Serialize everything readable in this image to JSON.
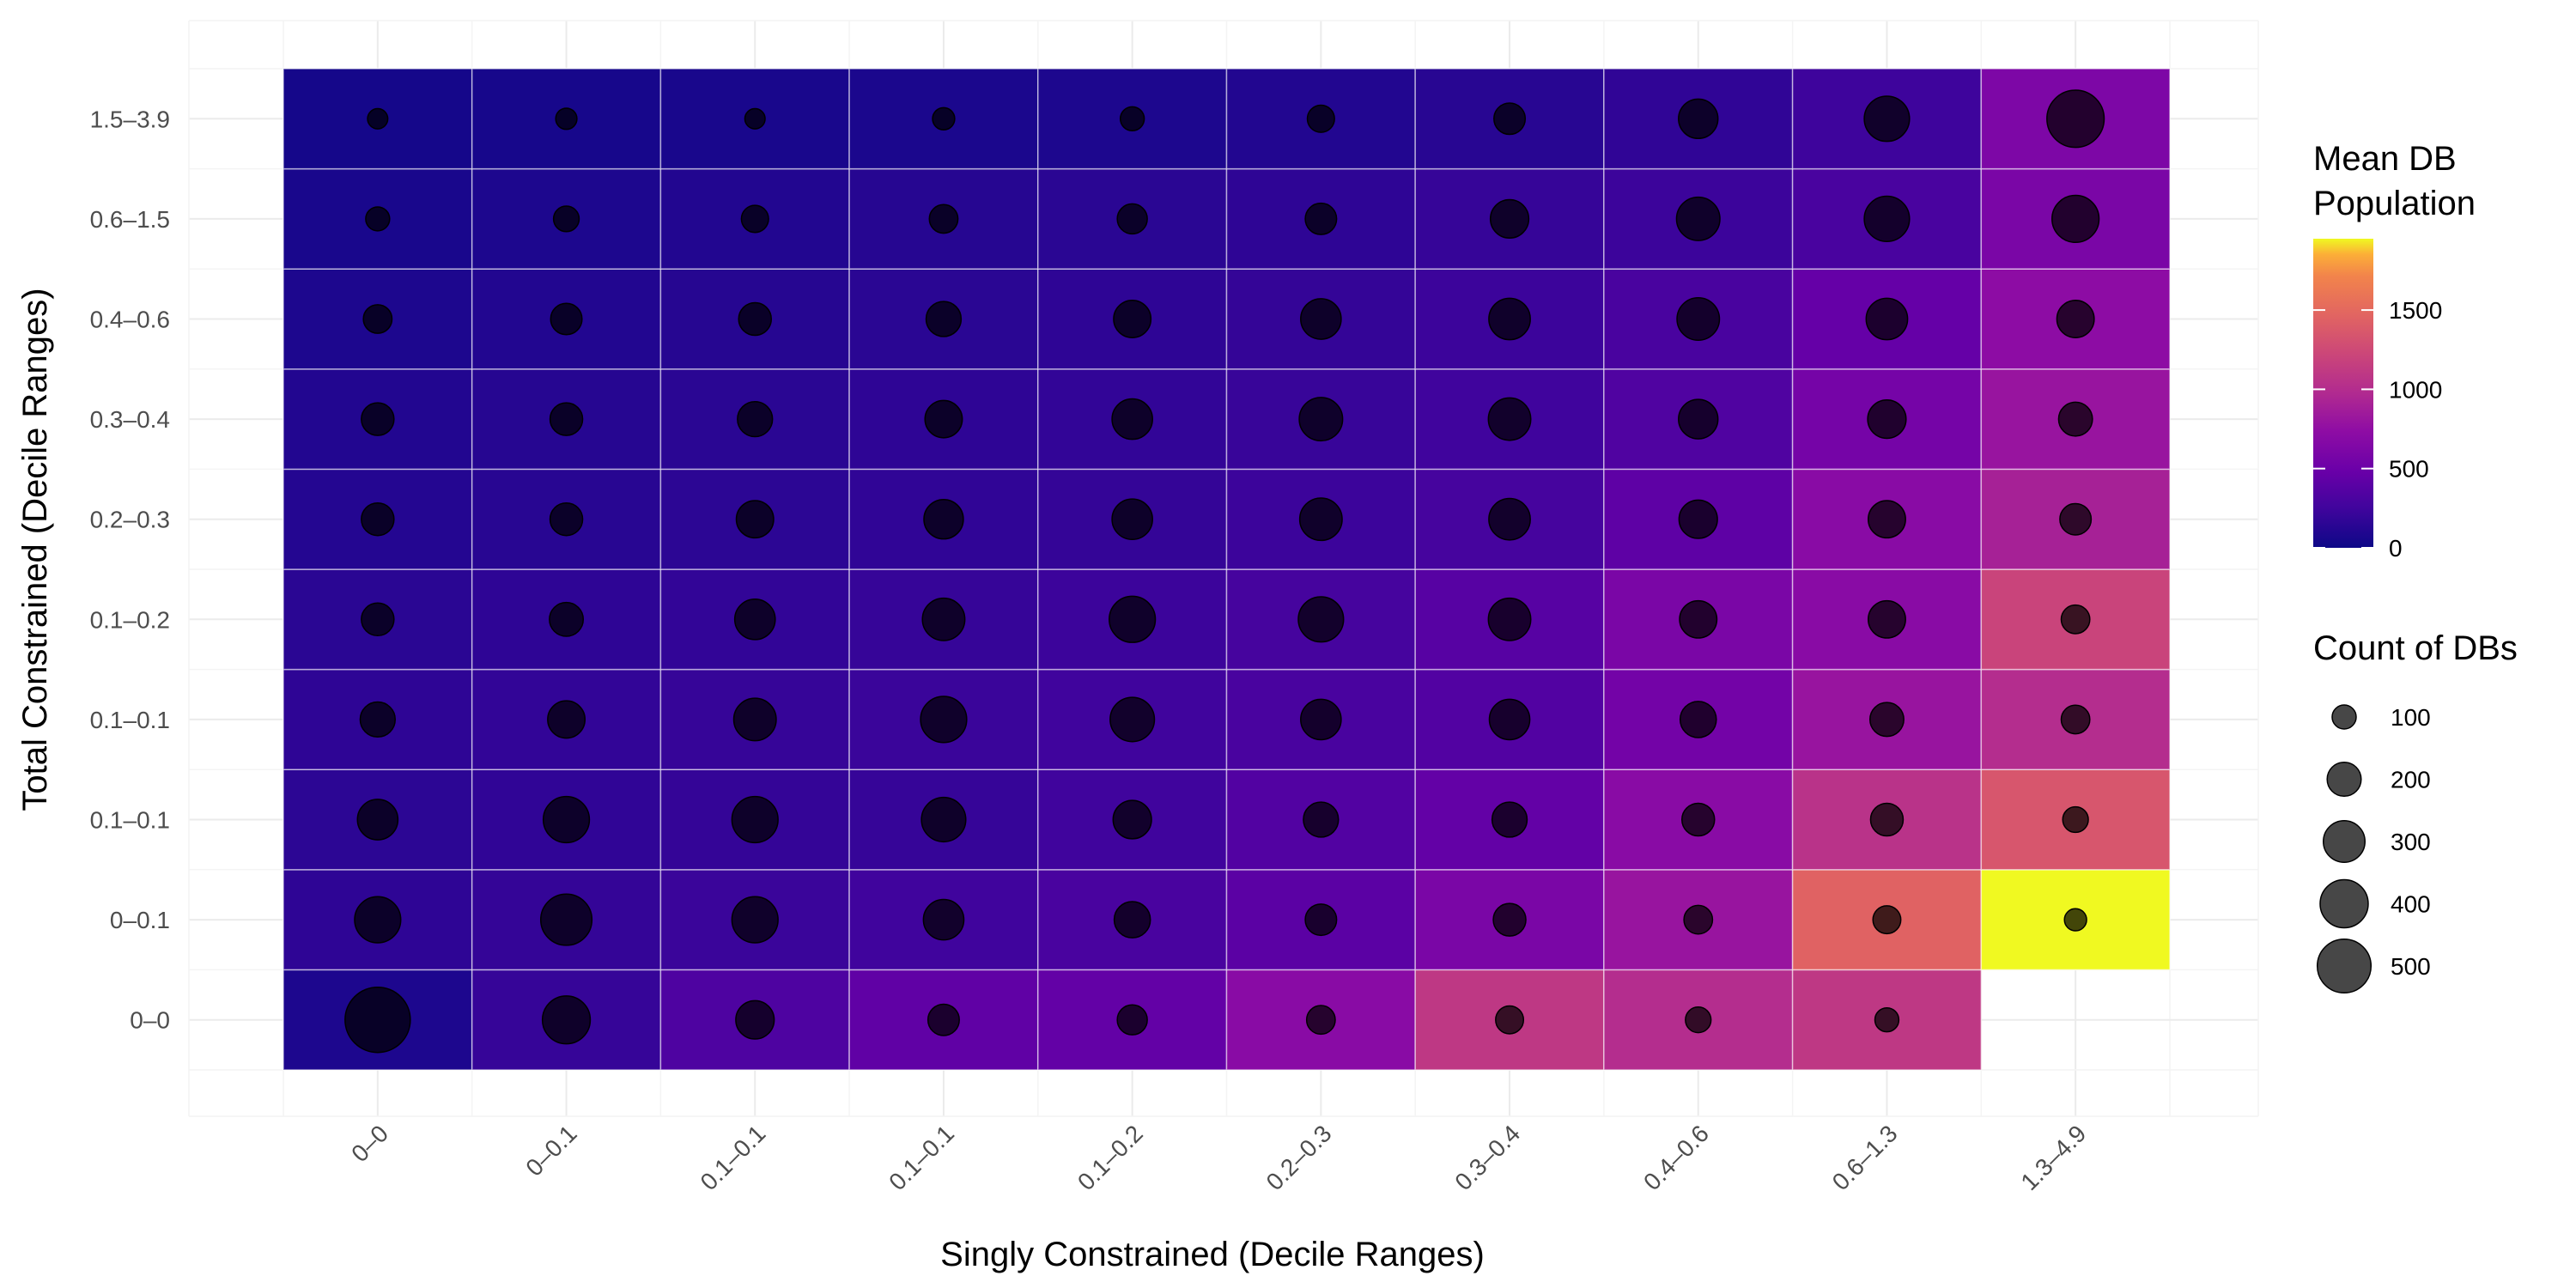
{
  "chart_data": {
    "type": "heatmap",
    "title": "",
    "xlabel": "Singly Constrained (Decile Ranges)",
    "ylabel": "Total Constrained (Decile Ranges)",
    "x_categories": [
      "0–0",
      "0–0.1",
      "0.1–0.1",
      "0.1–0.1",
      "0.1–0.2",
      "0.2–0.3",
      "0.3–0.4",
      "0.4–0.6",
      "0.6–1.3",
      "1.3–4.9"
    ],
    "y_categories": [
      "0–0",
      "0–0.1",
      "0.1–0.1",
      "0.1–0.1",
      "0.1–0.2",
      "0.2–0.3",
      "0.3–0.4",
      "0.4–0.6",
      "0.6–1.5",
      "1.5–3.9"
    ],
    "fill_values": [
      [
        80,
        200,
        330,
        430,
        450,
        700,
        1100,
        1000,
        1100,
        null
      ],
      [
        160,
        190,
        220,
        250,
        300,
        400,
        600,
        800,
        1450,
        1950
      ],
      [
        150,
        170,
        190,
        200,
        250,
        350,
        450,
        700,
        1050,
        1350
      ],
      [
        160,
        180,
        200,
        220,
        250,
        300,
        350,
        550,
        800,
        1000
      ],
      [
        140,
        160,
        180,
        200,
        230,
        280,
        380,
        600,
        700,
        1200
      ],
      [
        110,
        130,
        150,
        170,
        190,
        230,
        280,
        420,
        700,
        900
      ],
      [
        100,
        120,
        140,
        160,
        180,
        210,
        250,
        340,
        560,
        800
      ],
      [
        80,
        100,
        120,
        140,
        160,
        190,
        230,
        300,
        460,
        730
      ],
      [
        60,
        80,
        100,
        120,
        140,
        160,
        200,
        230,
        300,
        600
      ],
      [
        40,
        50,
        60,
        70,
        80,
        100,
        130,
        170,
        240,
        620
      ]
    ],
    "size_values": [
      [
        520,
        280,
        180,
        120,
        110,
        100,
        95,
        80,
        70,
        null
      ],
      [
        260,
        320,
        260,
        200,
        160,
        120,
        130,
        100,
        95,
        60
      ],
      [
        200,
        260,
        260,
        240,
        180,
        150,
        150,
        130,
        130,
        80
      ],
      [
        150,
        170,
        220,
        260,
        240,
        200,
        200,
        160,
        140,
        100
      ],
      [
        130,
        140,
        200,
        220,
        260,
        250,
        220,
        170,
        170,
        100
      ],
      [
        130,
        130,
        170,
        190,
        200,
        220,
        210,
        180,
        170,
        120
      ],
      [
        130,
        130,
        150,
        170,
        200,
        230,
        220,
        190,
        180,
        140
      ],
      [
        100,
        120,
        130,
        150,
        170,
        200,
        210,
        220,
        210,
        170
      ],
      [
        70,
        80,
        90,
        100,
        110,
        120,
        180,
        230,
        250,
        270
      ],
      [
        50,
        55,
        50,
        60,
        70,
        90,
        120,
        190,
        250,
        400
      ]
    ],
    "fill_scale": {
      "min": 0,
      "max": 1950
    },
    "fill_legend": {
      "title_lines": [
        "Mean DB",
        "Population"
      ],
      "ticks": [
        0,
        500,
        1000,
        1500
      ]
    },
    "size_legend": {
      "title": "Count of DBs",
      "values": [
        100,
        200,
        300,
        400,
        500
      ]
    },
    "grid": true,
    "legend_position": "right"
  }
}
